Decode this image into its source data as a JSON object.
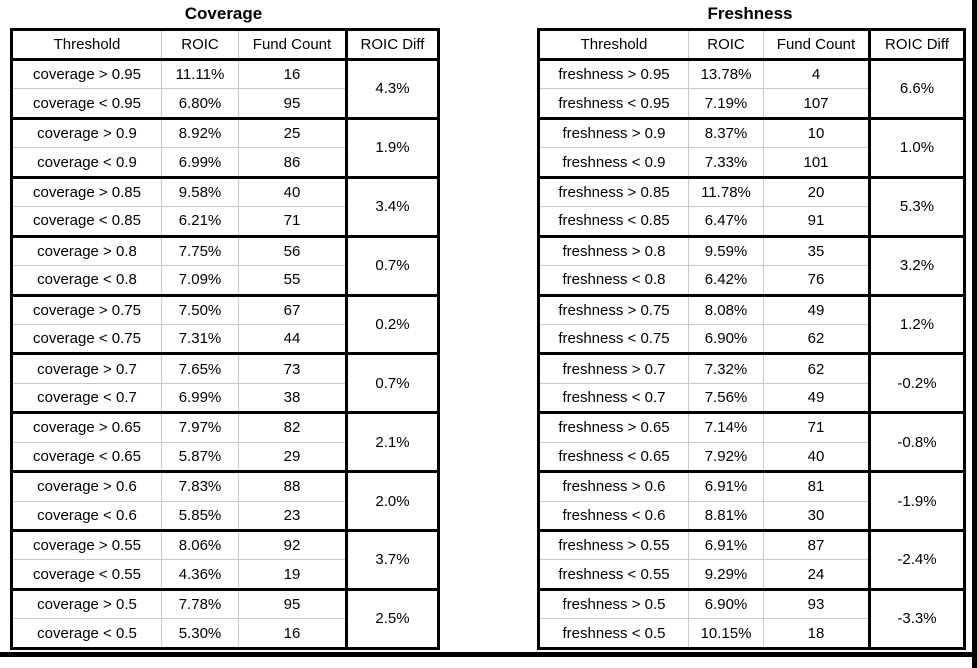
{
  "page": {
    "background_color": "#ffffff",
    "frame_color": "#000000",
    "thin_grid_color": "#c9c9c9"
  },
  "chart_data": [
    {
      "type": "table",
      "title": "Coverage",
      "columns": [
        "Threshold",
        "ROIC",
        "Fund Count",
        "ROIC Diff"
      ],
      "groups": [
        {
          "rows": [
            [
              "coverage > 0.95",
              "11.11%",
              "16"
            ],
            [
              "coverage < 0.95",
              "6.80%",
              "95"
            ]
          ],
          "roic_diff": "4.3%"
        },
        {
          "rows": [
            [
              "coverage > 0.9",
              "8.92%",
              "25"
            ],
            [
              "coverage < 0.9",
              "6.99%",
              "86"
            ]
          ],
          "roic_diff": "1.9%"
        },
        {
          "rows": [
            [
              "coverage > 0.85",
              "9.58%",
              "40"
            ],
            [
              "coverage < 0.85",
              "6.21%",
              "71"
            ]
          ],
          "roic_diff": "3.4%"
        },
        {
          "rows": [
            [
              "coverage > 0.8",
              "7.75%",
              "56"
            ],
            [
              "coverage < 0.8",
              "7.09%",
              "55"
            ]
          ],
          "roic_diff": "0.7%"
        },
        {
          "rows": [
            [
              "coverage > 0.75",
              "7.50%",
              "67"
            ],
            [
              "coverage < 0.75",
              "7.31%",
              "44"
            ]
          ],
          "roic_diff": "0.2%"
        },
        {
          "rows": [
            [
              "coverage > 0.7",
              "7.65%",
              "73"
            ],
            [
              "coverage < 0.7",
              "6.99%",
              "38"
            ]
          ],
          "roic_diff": "0.7%"
        },
        {
          "rows": [
            [
              "coverage > 0.65",
              "7.97%",
              "82"
            ],
            [
              "coverage < 0.65",
              "5.87%",
              "29"
            ]
          ],
          "roic_diff": "2.1%"
        },
        {
          "rows": [
            [
              "coverage > 0.6",
              "7.83%",
              "88"
            ],
            [
              "coverage < 0.6",
              "5.85%",
              "23"
            ]
          ],
          "roic_diff": "2.0%"
        },
        {
          "rows": [
            [
              "coverage > 0.55",
              "8.06%",
              "92"
            ],
            [
              "coverage < 0.55",
              "4.36%",
              "19"
            ]
          ],
          "roic_diff": "3.7%"
        },
        {
          "rows": [
            [
              "coverage > 0.5",
              "7.78%",
              "95"
            ],
            [
              "coverage < 0.5",
              "5.30%",
              "16"
            ]
          ],
          "roic_diff": "2.5%"
        }
      ]
    },
    {
      "type": "table",
      "title": "Freshness",
      "columns": [
        "Threshold",
        "ROIC",
        "Fund Count",
        "ROIC Diff"
      ],
      "groups": [
        {
          "rows": [
            [
              "freshness > 0.95",
              "13.78%",
              "4"
            ],
            [
              "freshness < 0.95",
              "7.19%",
              "107"
            ]
          ],
          "roic_diff": "6.6%"
        },
        {
          "rows": [
            [
              "freshness > 0.9",
              "8.37%",
              "10"
            ],
            [
              "freshness < 0.9",
              "7.33%",
              "101"
            ]
          ],
          "roic_diff": "1.0%"
        },
        {
          "rows": [
            [
              "freshness > 0.85",
              "11.78%",
              "20"
            ],
            [
              "freshness < 0.85",
              "6.47%",
              "91"
            ]
          ],
          "roic_diff": "5.3%"
        },
        {
          "rows": [
            [
              "freshness > 0.8",
              "9.59%",
              "35"
            ],
            [
              "freshness < 0.8",
              "6.42%",
              "76"
            ]
          ],
          "roic_diff": "3.2%"
        },
        {
          "rows": [
            [
              "freshness > 0.75",
              "8.08%",
              "49"
            ],
            [
              "freshness < 0.75",
              "6.90%",
              "62"
            ]
          ],
          "roic_diff": "1.2%"
        },
        {
          "rows": [
            [
              "freshness > 0.7",
              "7.32%",
              "62"
            ],
            [
              "freshness < 0.7",
              "7.56%",
              "49"
            ]
          ],
          "roic_diff": "-0.2%"
        },
        {
          "rows": [
            [
              "freshness > 0.65",
              "7.14%",
              "71"
            ],
            [
              "freshness < 0.65",
              "7.92%",
              "40"
            ]
          ],
          "roic_diff": "-0.8%"
        },
        {
          "rows": [
            [
              "freshness > 0.6",
              "6.91%",
              "81"
            ],
            [
              "freshness < 0.6",
              "8.81%",
              "30"
            ]
          ],
          "roic_diff": "-1.9%"
        },
        {
          "rows": [
            [
              "freshness > 0.55",
              "6.91%",
              "87"
            ],
            [
              "freshness < 0.55",
              "9.29%",
              "24"
            ]
          ],
          "roic_diff": "-2.4%"
        },
        {
          "rows": [
            [
              "freshness > 0.5",
              "6.90%",
              "93"
            ],
            [
              "freshness < 0.5",
              "10.15%",
              "18"
            ]
          ],
          "roic_diff": "-3.3%"
        }
      ]
    }
  ]
}
